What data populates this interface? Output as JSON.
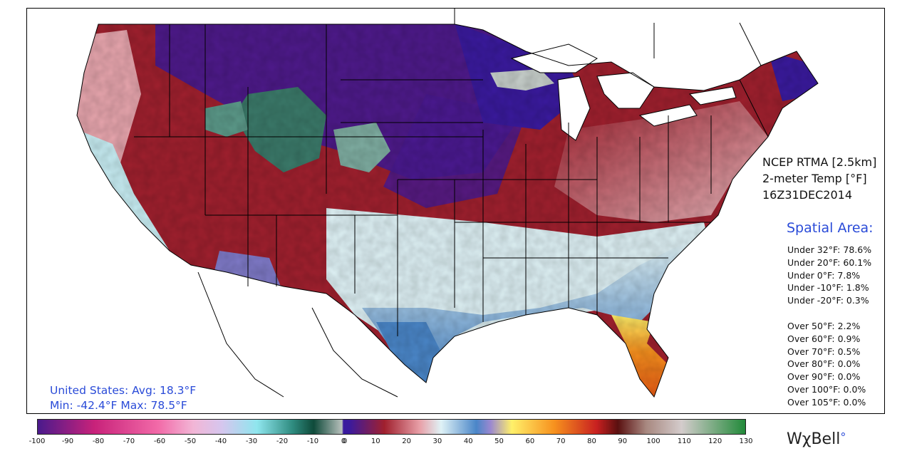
{
  "model": {
    "line1": "NCEP RTMA [2.5km]",
    "line2": "2-meter Temp [°F]",
    "line3": "16Z31DEC2014"
  },
  "spatial": {
    "title": "Spatial Area:",
    "under": [
      "Under 32°F: 78.6%",
      "Under 20°F: 60.1%",
      "Under 0°F: 7.8%",
      "Under -10°F: 1.8%",
      "Under -20°F: 0.3%"
    ],
    "over": [
      "Over 50°F: 2.2%",
      "Over 60°F: 0.9%",
      "Over 70°F: 0.5%",
      "Over 80°F: 0.0%",
      "Over 90°F: 0.0%",
      "Over 100°F: 0.0%",
      "Over 105°F: 0.0%"
    ]
  },
  "stats": {
    "line1": "United States: Avg:  18.3°F",
    "line2": "Min: -42.4°F Max:  78.5°F"
  },
  "colorbar": {
    "ticks": [
      "-100",
      "-90",
      "-80",
      "-70",
      "-60",
      "-50",
      "-40",
      "-30",
      "-20",
      "-10",
      "0",
      "0",
      "10",
      "20",
      "30",
      "40",
      "50",
      "60",
      "70",
      "80",
      "90",
      "100",
      "110",
      "120",
      "130"
    ],
    "colors": {
      "deep_purple": "#4a1a8c",
      "magenta": "#c8227a",
      "pink": "#f26aa8",
      "light_pink": "#f2b6d6",
      "light_purple": "#d6c6ee",
      "cyan": "#8fe6ee",
      "teal": "#2f8c80",
      "dark_teal": "#0f4a3a",
      "grey": "#b8c0bc",
      "indigo": "#3a1a9e",
      "dark_red": "#a0202e",
      "rose": "#e8a0a8",
      "ice": "#dff2f6",
      "blue": "#4a86c8",
      "lavender": "#9a88d0",
      "yellow": "#fff06a",
      "orange": "#f7911e",
      "red": "#c82020",
      "maroon": "#5a1010",
      "tan": "#a88880",
      "silver": "#d4cccc",
      "green": "#228a3a"
    }
  },
  "map_colors": {
    "ocean": "#ffffff",
    "land_outside": "#ffffff",
    "cold_deep": "#4a1a90",
    "cold_red": "#a0202e",
    "mid_pink": "#e8a6ae",
    "ice": "#dff2f6",
    "cool_blue": "#4a86c8",
    "warm_yellow": "#fff06a",
    "warm_orange": "#f7911e",
    "very_cold_teal": "#3b7a6a"
  },
  "brand": {
    "name": "WχBell",
    "mark": "°"
  }
}
